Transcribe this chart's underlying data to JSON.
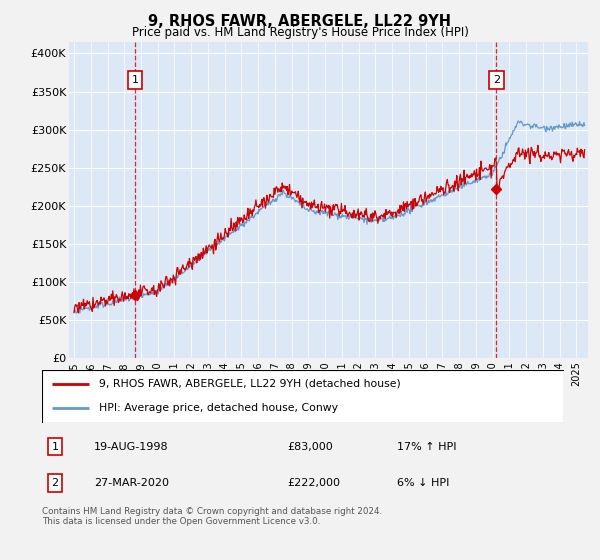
{
  "title": "9, RHOS FAWR, ABERGELE, LL22 9YH",
  "subtitle": "Price paid vs. HM Land Registry's House Price Index (HPI)",
  "ylabel_ticks": [
    "£0",
    "£50K",
    "£100K",
    "£150K",
    "£200K",
    "£250K",
    "£300K",
    "£350K",
    "£400K"
  ],
  "ytick_vals": [
    0,
    50000,
    100000,
    150000,
    200000,
    250000,
    300000,
    350000,
    400000
  ],
  "ylim": [
    0,
    415000
  ],
  "xlim_start": 1994.7,
  "xlim_end": 2025.7,
  "legend_line1": "9, RHOS FAWR, ABERGELE, LL22 9YH (detached house)",
  "legend_line2": "HPI: Average price, detached house, Conwy",
  "annotation1_label": "1",
  "annotation1_date": "19-AUG-1998",
  "annotation1_price": "£83,000",
  "annotation1_hpi": "17% ↑ HPI",
  "annotation2_label": "2",
  "annotation2_date": "27-MAR-2020",
  "annotation2_price": "£222,000",
  "annotation2_hpi": "6% ↓ HPI",
  "footer": "Contains HM Land Registry data © Crown copyright and database right 2024.\nThis data is licensed under the Open Government Licence v3.0.",
  "color_red": "#cc0000",
  "color_blue": "#6699cc",
  "color_grid": "#cccccc",
  "color_vline": "#cc0000",
  "plot_bg": "#dce8f5",
  "figure_bg": "#f0f0f0",
  "marker1_x": 1998.64,
  "marker1_y": 83000,
  "marker2_x": 2020.23,
  "marker2_y": 222000,
  "vline1_x": 1998.64,
  "vline2_x": 2020.23,
  "xtick_years": [
    1995,
    1996,
    1997,
    1998,
    1999,
    2000,
    2001,
    2002,
    2003,
    2004,
    2005,
    2006,
    2007,
    2008,
    2009,
    2010,
    2011,
    2012,
    2013,
    2014,
    2015,
    2016,
    2017,
    2018,
    2019,
    2020,
    2021,
    2022,
    2023,
    2024,
    2025
  ]
}
